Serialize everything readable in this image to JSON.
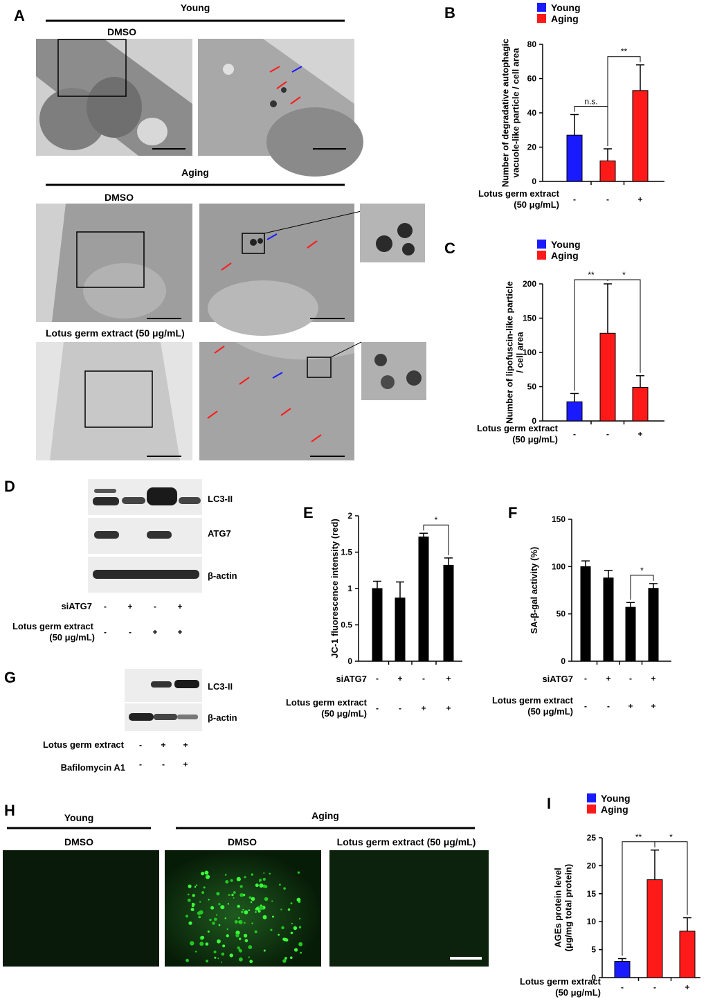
{
  "panels": {
    "A": {
      "label": "A",
      "young": "Young",
      "dmso": "DMSO",
      "aging": "Aging",
      "aging_dmso": "DMSO",
      "lotus": "Lotus germ extract (50 μg/mL)"
    },
    "B": {
      "label": "B"
    },
    "C": {
      "label": "C"
    },
    "D": {
      "label": "D",
      "bands": [
        "LC3-II",
        "ATG7",
        "β-actin"
      ],
      "row1_label": "siATG7",
      "row1": [
        "-",
        "+",
        "-",
        "+"
      ],
      "row2_label_1": "Lotus germ extract",
      "row2_label_2": "(50 μg/mL)",
      "row2": [
        "-",
        "-",
        "+",
        "+"
      ]
    },
    "E": {
      "label": "E"
    },
    "F": {
      "label": "F"
    },
    "G": {
      "label": "G",
      "bands": [
        "LC3-II",
        "β-actin"
      ],
      "row1_label": "Lotus germ extract",
      "row1": [
        "-",
        "+",
        "+"
      ],
      "row2_label": "Bafilomycin A1",
      "row2": [
        "-",
        "-",
        "+"
      ]
    },
    "H": {
      "label": "H",
      "young": "Young",
      "aging": "Aging",
      "dmso1": "DMSO",
      "dmso2": "DMSO",
      "lotus": "Lotus germ extract (50 μg/mL)"
    },
    "I": {
      "label": "I"
    }
  },
  "chart_data": [
    {
      "id": "B",
      "type": "bar",
      "ylabel": "Number of degradative autophagic vacuole-like particle / cell area",
      "ylabel_lines": [
        "Number of degradative autophagic",
        "vacuole-like particle  / cell area"
      ],
      "ylim": [
        0,
        80
      ],
      "yticks": [
        "0",
        "20",
        "40",
        "60",
        "80"
      ],
      "values": [
        27,
        12,
        53
      ],
      "errors": [
        12,
        7,
        15
      ],
      "colors": [
        "#1a1aff",
        "#ff1a1a",
        "#ff1a1a"
      ],
      "legend": [
        {
          "name": "Young",
          "color": "#1a1aff"
        },
        {
          "name": "Aging",
          "color": "#ff1a1a"
        }
      ],
      "xrows": [
        {
          "label_lines": [
            "Lotus germ extract",
            "(50 μg/mL)"
          ],
          "values": [
            "-",
            "-",
            "+"
          ]
        }
      ],
      "significance": [
        {
          "from": 0,
          "to": 1,
          "text": "n.s."
        },
        {
          "from": 1,
          "to": 2,
          "text": "**"
        }
      ]
    },
    {
      "id": "C",
      "type": "bar",
      "ylabel": "Number of lipofuscin-like particle / cell area",
      "ylabel_lines": [
        "Number of lipofuscin-like particle",
        "/ cell area"
      ],
      "ylim": [
        0,
        200
      ],
      "yticks": [
        "0",
        "50",
        "100",
        "150",
        "200"
      ],
      "values": [
        28,
        128,
        49
      ],
      "errors": [
        12,
        72,
        17
      ],
      "colors": [
        "#1a1aff",
        "#ff1a1a",
        "#ff1a1a"
      ],
      "legend": [
        {
          "name": "Young",
          "color": "#1a1aff"
        },
        {
          "name": "Aging",
          "color": "#ff1a1a"
        }
      ],
      "xrows": [
        {
          "label_lines": [
            "Lotus germ extract",
            "(50 μg/mL)"
          ],
          "values": [
            "-",
            "-",
            "+"
          ]
        }
      ],
      "significance": [
        {
          "from": 0,
          "to": 1,
          "text": "**"
        },
        {
          "from": 1,
          "to": 2,
          "text": "*"
        }
      ]
    },
    {
      "id": "E",
      "type": "bar",
      "ylabel": "JC-1 fluorescence intensity (red)",
      "ylabel_lines": [
        "JC-1 fluorescence intensity (red)"
      ],
      "ylim": [
        0,
        2
      ],
      "yticks": [
        "0",
        "0.5",
        "1",
        "1.5",
        "2"
      ],
      "values": [
        1.0,
        0.87,
        1.71,
        1.32
      ],
      "errors": [
        0.1,
        0.22,
        0.05,
        0.1
      ],
      "colors": [
        "#000000",
        "#000000",
        "#000000",
        "#000000"
      ],
      "legend": [],
      "xrows": [
        {
          "label_lines": [
            "siATG7"
          ],
          "values": [
            "-",
            "+",
            "-",
            "+"
          ]
        },
        {
          "label_lines": [
            "Lotus germ extract",
            "(50 μg/mL)"
          ],
          "values": [
            "-",
            "-",
            "+",
            "+"
          ]
        }
      ],
      "significance": [
        {
          "from": 2,
          "to": 3,
          "text": "*"
        }
      ]
    },
    {
      "id": "F",
      "type": "bar",
      "ylabel": "SA-β-gal activity (%)",
      "ylabel_lines": [
        "SA-β-gal activity (%)"
      ],
      "ylim": [
        0,
        150
      ],
      "yticks": [
        "0",
        "50",
        "100",
        "150"
      ],
      "values": [
        100,
        88,
        57,
        77
      ],
      "errors": [
        6,
        8,
        5,
        5
      ],
      "colors": [
        "#000000",
        "#000000",
        "#000000",
        "#000000"
      ],
      "legend": [],
      "xrows": [
        {
          "label_lines": [
            "siATG7"
          ],
          "values": [
            "-",
            "+",
            "-",
            "+"
          ]
        },
        {
          "label_lines": [
            "Lotus germ extract",
            "(50 μg/mL)"
          ],
          "values": [
            "-",
            "-",
            "+",
            "+"
          ]
        }
      ],
      "significance": [
        {
          "from": 2,
          "to": 3,
          "text": "*"
        }
      ]
    },
    {
      "id": "I",
      "type": "bar",
      "ylabel": "AGEs protein level (μg/mg total protein)",
      "ylabel_lines": [
        "AGEs protein level",
        "(μg/mg total protein)"
      ],
      "ylim": [
        0,
        25
      ],
      "yticks": [
        "0",
        "5",
        "10",
        "15",
        "20",
        "25"
      ],
      "values": [
        2.9,
        17.5,
        8.3
      ],
      "errors": [
        0.5,
        5.3,
        2.4
      ],
      "colors": [
        "#1a1aff",
        "#ff1a1a",
        "#ff1a1a"
      ],
      "legend": [
        {
          "name": "Young",
          "color": "#1a1aff"
        },
        {
          "name": "Aging",
          "color": "#ff1a1a"
        }
      ],
      "xrows": [
        {
          "label_lines": [
            "Lotus germ extract",
            "(50 μg/mL)"
          ],
          "values": [
            "-",
            "-",
            "+"
          ]
        }
      ],
      "significance": [
        {
          "from": 0,
          "to": 1,
          "text": "**"
        },
        {
          "from": 1,
          "to": 2,
          "text": "*"
        }
      ]
    }
  ]
}
